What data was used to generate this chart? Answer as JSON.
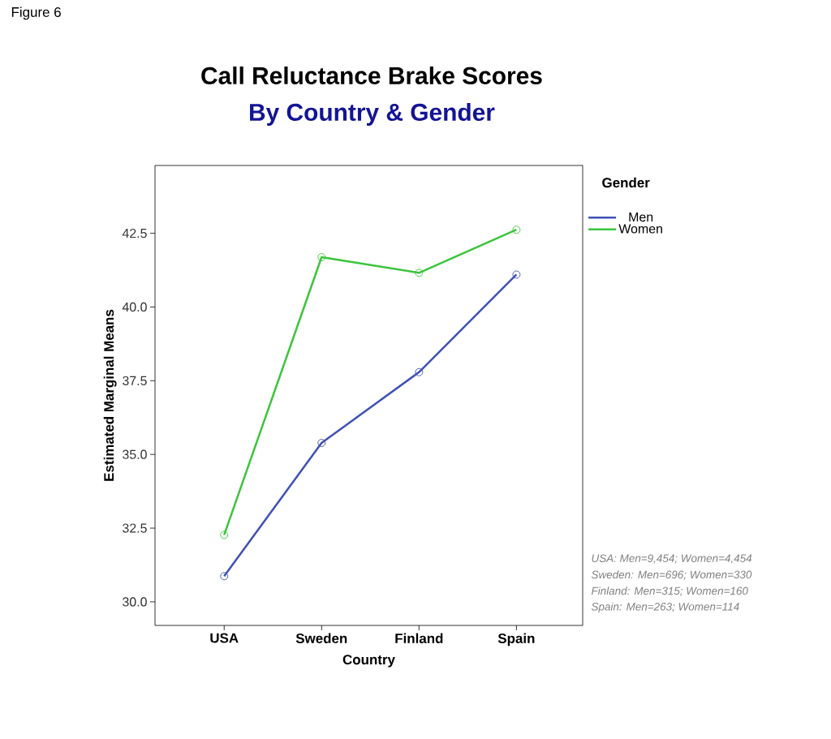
{
  "chart_data": {
    "type": "line",
    "title": "Call Reluctance Brake Scores",
    "subtitle": "By Country & Gender",
    "xlabel": "Country",
    "ylabel": "Estimated Marginal Means",
    "legend_title": "Gender",
    "categories": [
      "USA",
      "Sweden",
      "Finland",
      "Spain"
    ],
    "series": [
      {
        "name": "Men",
        "color": "#3f51b5",
        "values": [
          30.87,
          35.39,
          37.79,
          41.1
        ]
      },
      {
        "name": "Women",
        "color": "#3cc43c",
        "values": [
          32.27,
          41.69,
          41.16,
          42.62
        ]
      }
    ],
    "ylim": [
      29.2,
      44.8
    ],
    "yticks": [
      {
        "value": 30,
        "label": "30.0"
      },
      {
        "value": 32.5,
        "label": "32.5"
      },
      {
        "value": 35,
        "label": "35.0"
      },
      {
        "value": 37.5,
        "label": "37.5"
      },
      {
        "value": 40,
        "label": "40.0"
      },
      {
        "value": 42.5,
        "label": "42.5"
      }
    ],
    "grid": false,
    "legend": "right",
    "marker": "circle",
    "line_style": "solid",
    "annotations": [
      "Figure 6",
      "USA: Men=9,454; Women=4,454",
      "Sweden: Men=696; Women=330",
      "Finland: Men=315; Women=160",
      "Spain: Men=263; Women=114"
    ]
  }
}
